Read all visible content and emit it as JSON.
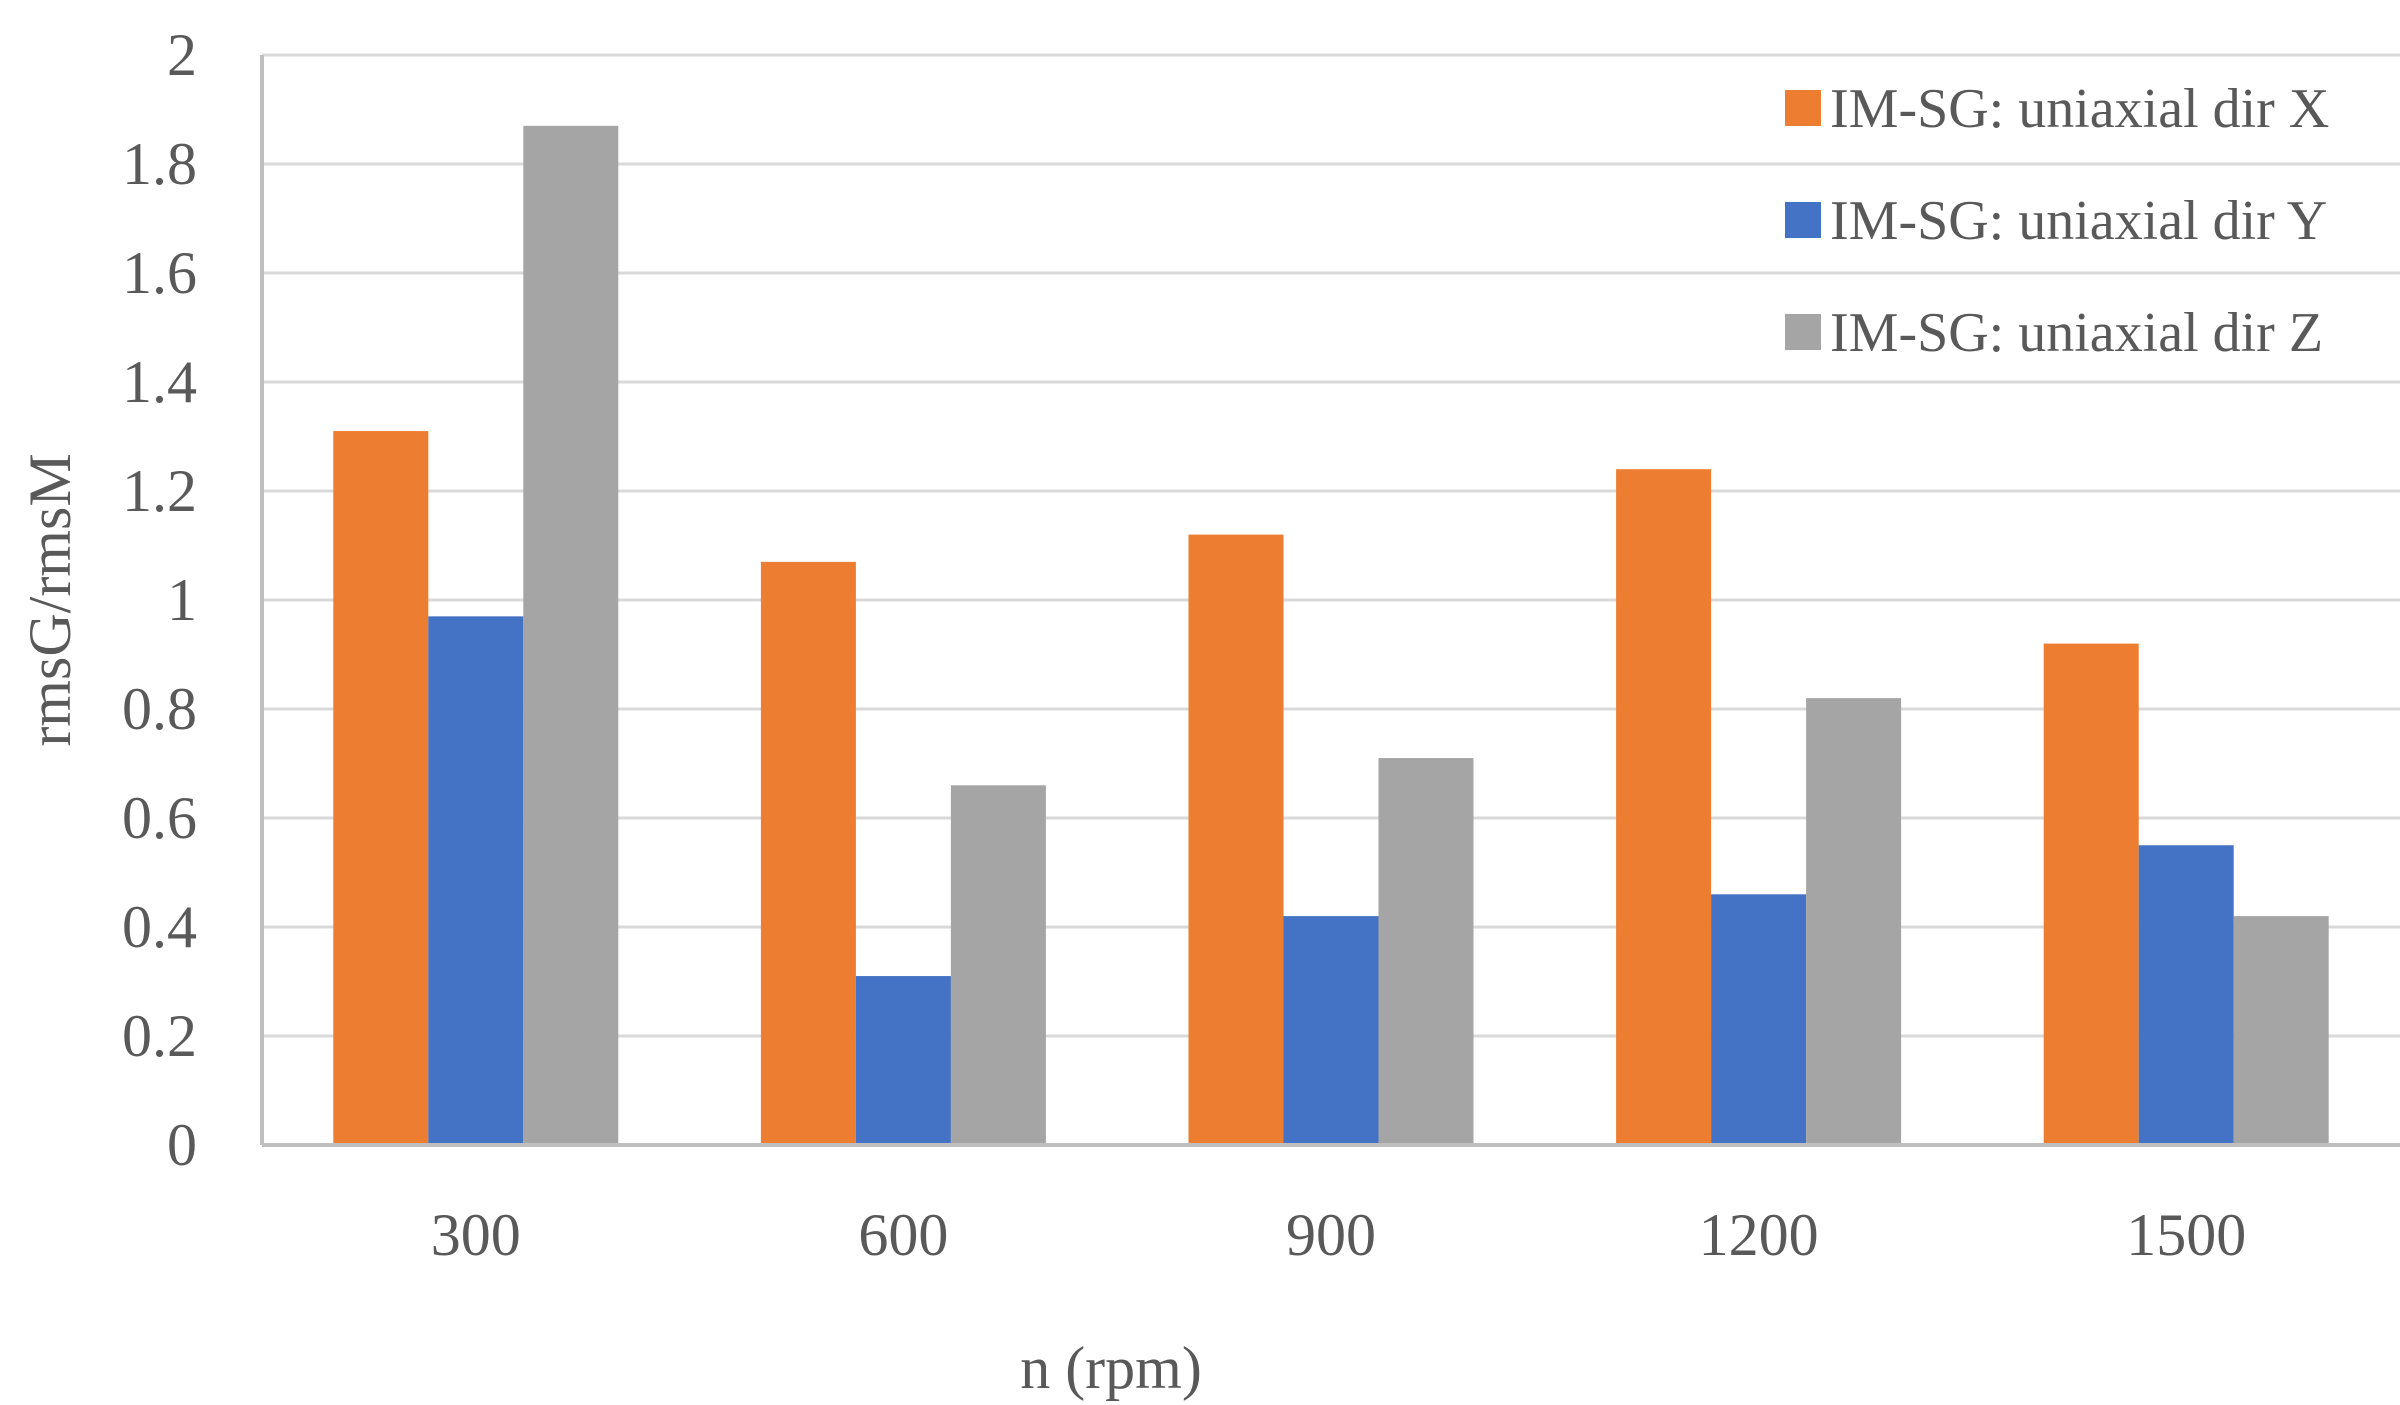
{
  "chart_data": {
    "type": "bar",
    "title": "",
    "xlabel": "n (rpm)",
    "ylabel": "rmsG/rmsM",
    "ylim": [
      0,
      2
    ],
    "y_ticks": [
      "0",
      "0.2",
      "0.4",
      "0.6",
      "0.8",
      "1",
      "1.2",
      "1.4",
      "1.6",
      "1.8",
      "2"
    ],
    "categories": [
      "300",
      "600",
      "900",
      "1200",
      "1500"
    ],
    "grid": true,
    "legend_position": "top-right",
    "series": [
      {
        "name": "IM-SG: uniaxial dir X",
        "color": "#ED7D31",
        "values": [
          1.31,
          1.07,
          1.12,
          1.24,
          0.92
        ]
      },
      {
        "name": "IM-SG: uniaxial dir Y",
        "color": "#4472C4",
        "values": [
          0.97,
          0.31,
          0.42,
          0.46,
          0.55
        ]
      },
      {
        "name": "IM-SG: uniaxial dir Z",
        "color": "#A5A5A5",
        "values": [
          1.87,
          0.66,
          0.71,
          0.82,
          0.42
        ]
      }
    ]
  }
}
